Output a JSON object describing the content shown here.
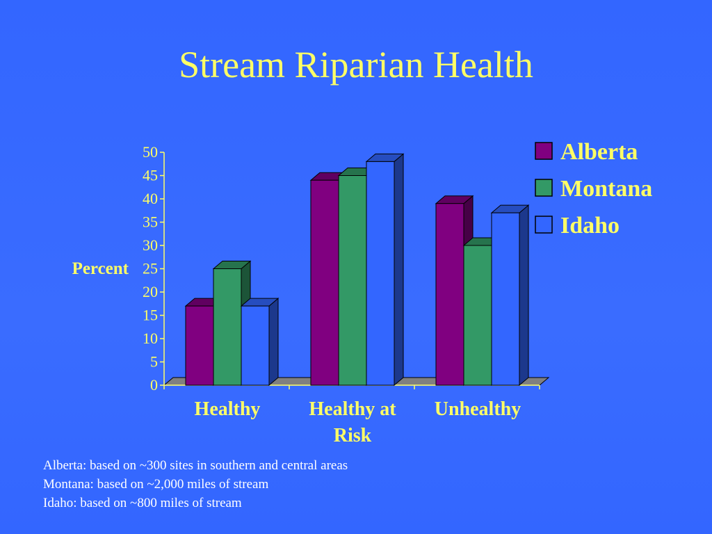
{
  "slide": {
    "title": "Stream Riparian Health",
    "notes": [
      "Alberta:  based on ~300 sites in southern and central areas",
      "Montana:  based on ~2,000 miles of stream",
      "Idaho:  based on ~800 miles of stream"
    ]
  },
  "chart_data": {
    "type": "bar",
    "style": "3d-clustered-column",
    "title": "Stream Riparian Health",
    "categories": [
      "Healthy",
      "Healthy at Risk",
      "Unhealthy"
    ],
    "category_lines": [
      [
        "Healthy"
      ],
      [
        "Healthy at",
        "Risk"
      ],
      [
        "Unhealthy"
      ]
    ],
    "series": [
      {
        "name": "Alberta",
        "values": [
          17,
          44,
          39
        ],
        "color": "#800080"
      },
      {
        "name": "Montana",
        "values": [
          25,
          45,
          30
        ],
        "color": "#339966"
      },
      {
        "name": "Idaho",
        "values": [
          17,
          48,
          37
        ],
        "color": "#3366ff"
      }
    ],
    "xlabel": "",
    "ylabel": "Percent",
    "ylim": [
      0,
      50
    ],
    "yticks": [
      0,
      5,
      10,
      15,
      20,
      25,
      30,
      35,
      40,
      45,
      50
    ],
    "legend_position": "top-right",
    "grid": false,
    "colors": {
      "text": "#ffff66",
      "floor": "#808080",
      "background": "#3366ff",
      "notes_text": "#ffffff"
    }
  }
}
